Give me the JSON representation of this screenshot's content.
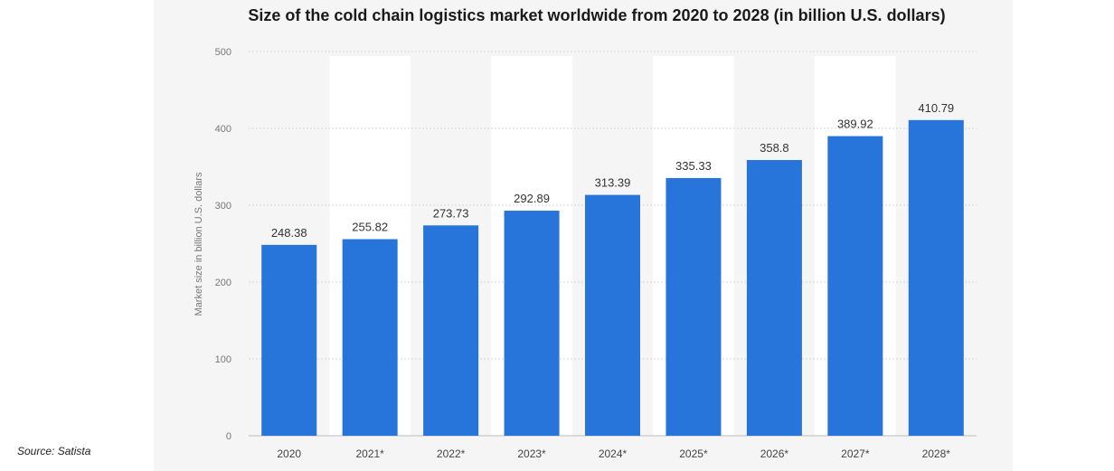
{
  "source_note": "Source: Satista",
  "colors": {
    "bar": "#2774db",
    "band": "#ffffff",
    "grid": "#d8d8d8",
    "axis_text": "#777777",
    "label_text": "#333333"
  },
  "chart_data": {
    "type": "bar",
    "title": "Size of the cold chain logistics market worldwide from 2020 to 2028 (in billion U.S. dollars)",
    "ylabel": "Market size in billion U.S. dollars",
    "xlabel": "",
    "categories": [
      "2020",
      "2021*",
      "2022*",
      "2023*",
      "2024*",
      "2025*",
      "2026*",
      "2027*",
      "2028*"
    ],
    "values": [
      248.38,
      255.82,
      273.73,
      292.89,
      313.39,
      335.33,
      358.8,
      389.92,
      410.79
    ],
    "value_labels": [
      "248.38",
      "255.82",
      "273.73",
      "292.89",
      "313.39",
      "335.33",
      "358.8",
      "389.92",
      "410.79"
    ],
    "ylim": [
      0,
      500
    ],
    "yticks": [
      "0",
      "100",
      "200",
      "300",
      "400",
      "500"
    ],
    "grid": true,
    "legend": false
  }
}
